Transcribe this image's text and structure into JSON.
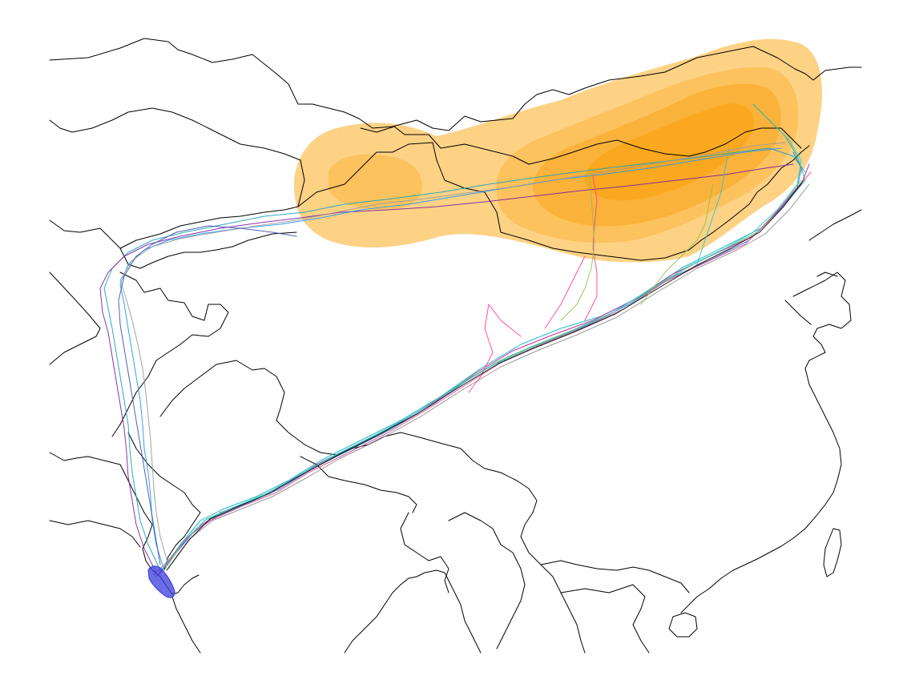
{
  "map": {
    "colors": {
      "density_levels": [
        "#fdd285",
        "#fcc25e",
        "#fbb23a",
        "#f9a81f"
      ],
      "borders": "#000000",
      "winter_cluster": "#3b3bdc"
    },
    "track_colors": [
      "#00b7c7",
      "#c0119b",
      "#1e7bd6",
      "#6cc24a",
      "#8c8c8c",
      "#e14b8a",
      "#17a2b8",
      "#7b1fa2",
      "#2196f3",
      "#999999",
      "#ff3e96",
      "#000000",
      "#26c6da",
      "#8bc34a",
      "#3f51b5"
    ],
    "icons": {
      "winter_cluster": "cluster-marker-icon"
    }
  }
}
